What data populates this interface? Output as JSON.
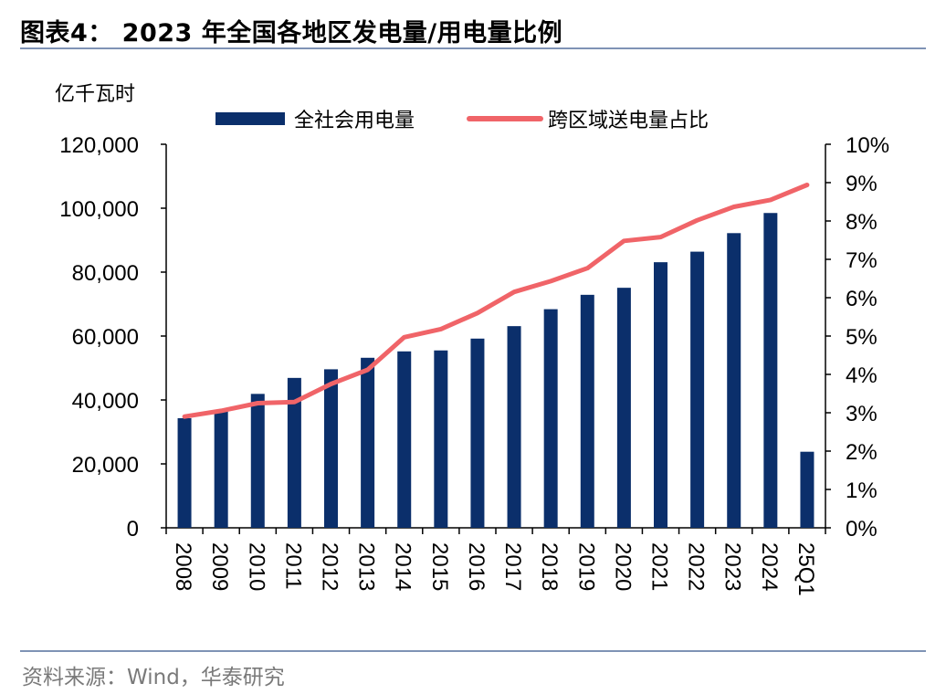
{
  "header": {
    "title": "图表4：  2023 年全国各地区发电量/用电量比例"
  },
  "footer": {
    "source": "资料来源：Wind，华泰研究"
  },
  "chart_data": {
    "type": "bar+line",
    "y_unit_label": "亿千瓦时",
    "categories": [
      "2008",
      "2009",
      "2010",
      "2011",
      "2012",
      "2013",
      "2014",
      "2015",
      "2016",
      "2017",
      "2018",
      "2019",
      "2020",
      "2021",
      "2022",
      "2023",
      "2024",
      "25Q1"
    ],
    "series": [
      {
        "name": "全社会用电量",
        "type": "bar",
        "axis": "left",
        "color": "#0b2f6b",
        "values": [
          34300,
          36600,
          41900,
          46900,
          49600,
          53200,
          55200,
          55500,
          59200,
          63100,
          68400,
          72900,
          75100,
          83100,
          86400,
          92200,
          98500,
          23800
        ]
      },
      {
        "name": "跨区域送电量占比",
        "type": "line",
        "axis": "right",
        "color": "#f06468",
        "values": [
          0.029,
          0.0305,
          0.0325,
          0.0328,
          0.0375,
          0.0412,
          0.0497,
          0.0518,
          0.056,
          0.0615,
          0.0643,
          0.0677,
          0.0748,
          0.0758,
          0.0802,
          0.0837,
          0.0855,
          0.0894
        ]
      }
    ],
    "left_axis": {
      "ylim": [
        0,
        120000
      ],
      "ticks": [
        "0",
        "20,000",
        "40,000",
        "60,000",
        "80,000",
        "100,000",
        "120,000"
      ]
    },
    "right_axis": {
      "ylim": [
        0,
        0.1
      ],
      "ticks": [
        "0%",
        "1%",
        "2%",
        "3%",
        "4%",
        "5%",
        "6%",
        "7%",
        "8%",
        "9%",
        "10%"
      ]
    },
    "legend_position": "top-center",
    "grid": false
  }
}
